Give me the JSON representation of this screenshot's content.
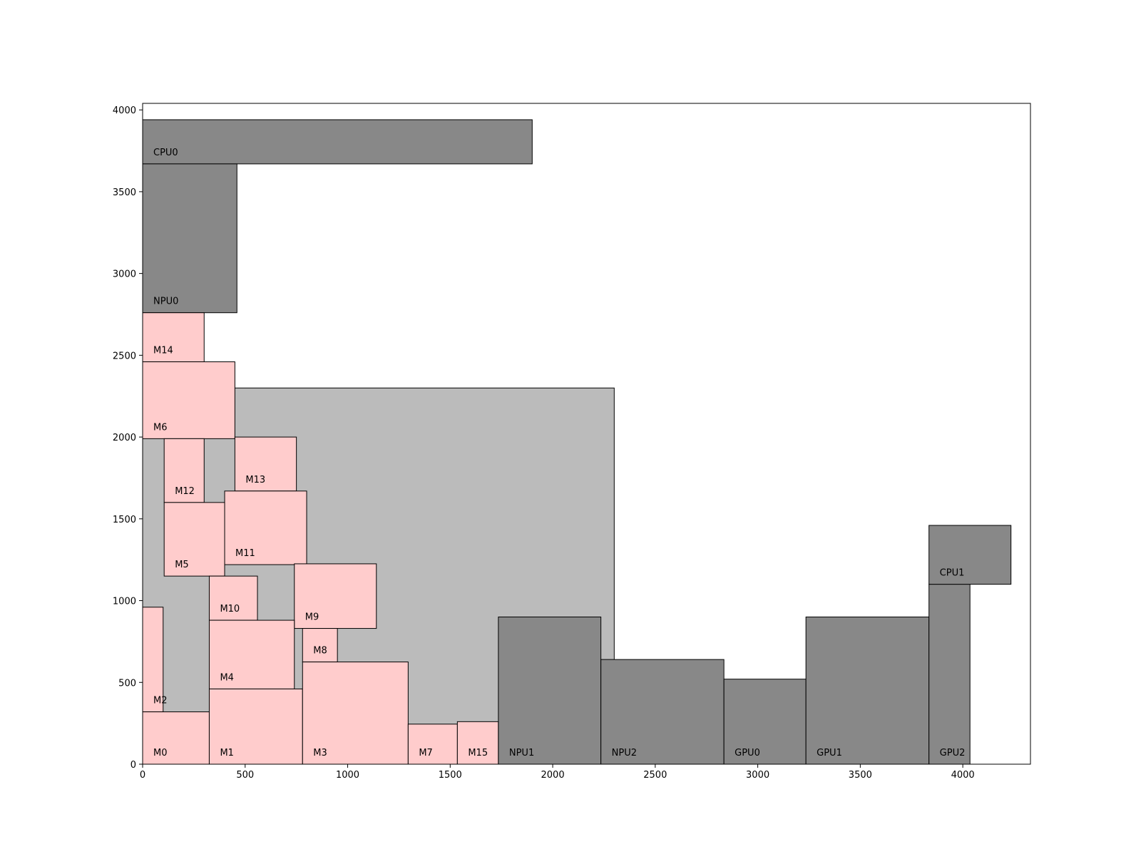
{
  "chart_data": {
    "type": "floorplan",
    "title": "",
    "xlabel": "",
    "ylabel": "",
    "xlim": [
      0,
      4330
    ],
    "ylim": [
      0,
      4040
    ],
    "grid": false,
    "x_ticks": [
      "0",
      "500",
      "1000",
      "1500",
      "2000",
      "2500",
      "3000",
      "3500",
      "4000"
    ],
    "x_tick_values": [
      0,
      500,
      1000,
      1500,
      2000,
      2500,
      3000,
      3500,
      4000
    ],
    "y_ticks": [
      "0",
      "500",
      "1000",
      "1500",
      "2000",
      "2500",
      "3000",
      "3500",
      "4000"
    ],
    "y_tick_values": [
      0,
      500,
      1000,
      1500,
      2000,
      2500,
      3000,
      3500,
      4000
    ],
    "colors": {
      "memory": "#ffcccc",
      "processor": "#888888",
      "region": "#bbbbbb",
      "edge": "#000000"
    },
    "regions": [
      {
        "x0": 0,
        "y0": 0,
        "x1": 2300,
        "y1": 2300
      }
    ],
    "blocks": [
      {
        "label": "CPU0",
        "kind": "processor",
        "x0": 0,
        "y0": 3670,
        "x1": 1900,
        "y1": 3940
      },
      {
        "label": "NPU0",
        "kind": "processor",
        "x0": 0,
        "y0": 2760,
        "x1": 460,
        "y1": 3670
      },
      {
        "label": "M14",
        "kind": "memory",
        "x0": 0,
        "y0": 2460,
        "x1": 300,
        "y1": 2760
      },
      {
        "label": "M6",
        "kind": "memory",
        "x0": 0,
        "y0": 1990,
        "x1": 450,
        "y1": 2460
      },
      {
        "label": "M12",
        "kind": "memory",
        "x0": 105,
        "y0": 1600,
        "x1": 300,
        "y1": 1990
      },
      {
        "label": "M13",
        "kind": "memory",
        "x0": 450,
        "y0": 1670,
        "x1": 750,
        "y1": 2000
      },
      {
        "label": "M11",
        "kind": "memory",
        "x0": 400,
        "y0": 1220,
        "x1": 800,
        "y1": 1670
      },
      {
        "label": "M5",
        "kind": "memory",
        "x0": 105,
        "y0": 1150,
        "x1": 400,
        "y1": 1600
      },
      {
        "label": "M10",
        "kind": "memory",
        "x0": 325,
        "y0": 880,
        "x1": 560,
        "y1": 1150
      },
      {
        "label": "M9",
        "kind": "memory",
        "x0": 740,
        "y0": 830,
        "x1": 1140,
        "y1": 1225
      },
      {
        "label": "M8",
        "kind": "memory",
        "x0": 780,
        "y0": 625,
        "x1": 950,
        "y1": 830
      },
      {
        "label": "M4",
        "kind": "memory",
        "x0": 325,
        "y0": 460,
        "x1": 740,
        "y1": 880
      },
      {
        "label": "M2",
        "kind": "memory",
        "x0": 0,
        "y0": 320,
        "x1": 100,
        "y1": 960
      },
      {
        "label": "M0",
        "kind": "memory",
        "x0": 0,
        "y0": 0,
        "x1": 325,
        "y1": 320
      },
      {
        "label": "M1",
        "kind": "memory",
        "x0": 325,
        "y0": 0,
        "x1": 780,
        "y1": 460
      },
      {
        "label": "M3",
        "kind": "memory",
        "x0": 780,
        "y0": 0,
        "x1": 1295,
        "y1": 625
      },
      {
        "label": "M7",
        "kind": "memory",
        "x0": 1295,
        "y0": 0,
        "x1": 1535,
        "y1": 245
      },
      {
        "label": "M15",
        "kind": "memory",
        "x0": 1535,
        "y0": 0,
        "x1": 1735,
        "y1": 260
      },
      {
        "label": "NPU1",
        "kind": "processor",
        "x0": 1735,
        "y0": 0,
        "x1": 2235,
        "y1": 900
      },
      {
        "label": "NPU2",
        "kind": "processor",
        "x0": 2235,
        "y0": 0,
        "x1": 2835,
        "y1": 640
      },
      {
        "label": "GPU0",
        "kind": "processor",
        "x0": 2835,
        "y0": 0,
        "x1": 3235,
        "y1": 520
      },
      {
        "label": "GPU1",
        "kind": "processor",
        "x0": 3235,
        "y0": 0,
        "x1": 3835,
        "y1": 900
      },
      {
        "label": "GPU2",
        "kind": "processor",
        "x0": 3835,
        "y0": 0,
        "x1": 4035,
        "y1": 1100
      },
      {
        "label": "CPU1",
        "kind": "processor",
        "x0": 3835,
        "y0": 1100,
        "x1": 4235,
        "y1": 1460
      }
    ]
  }
}
